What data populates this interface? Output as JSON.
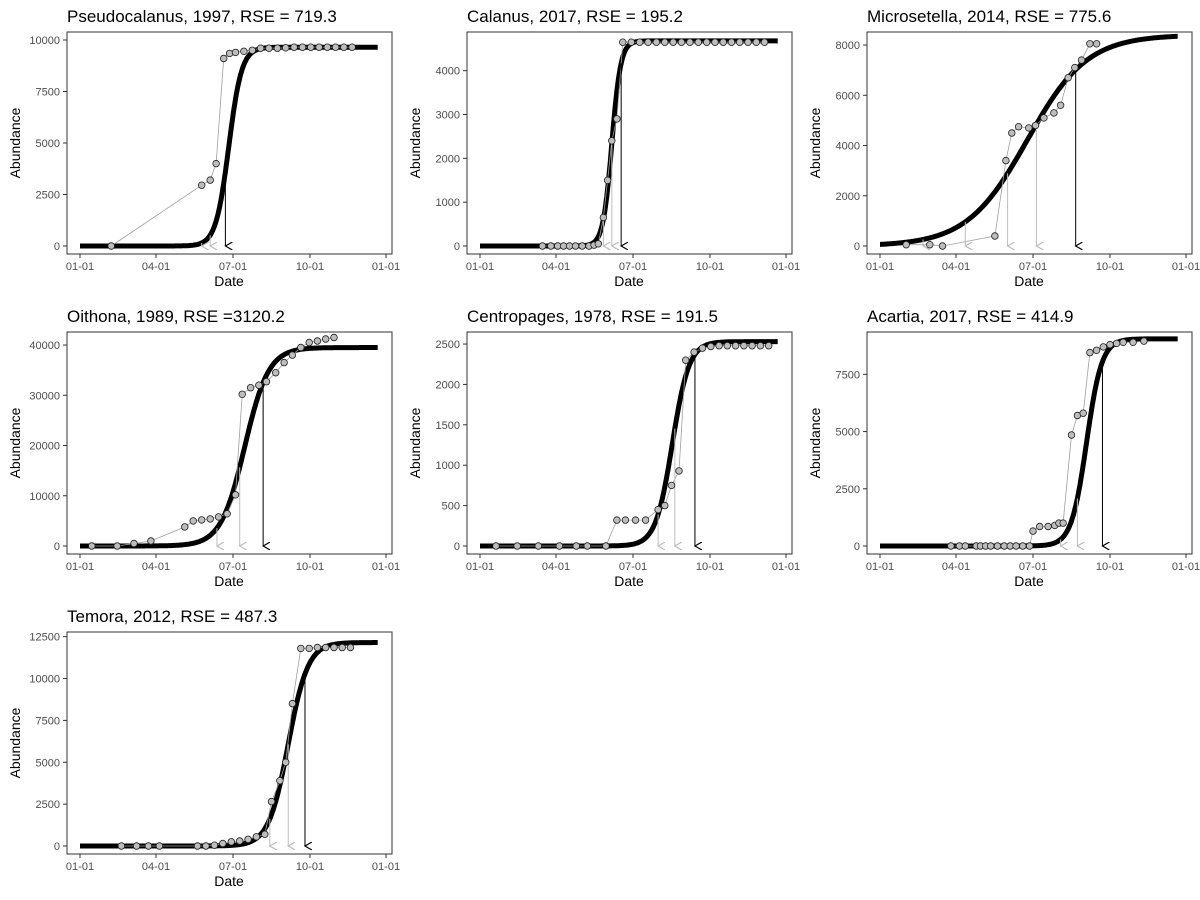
{
  "figure": {
    "x_tick_labels": [
      "01-01",
      "04-01",
      "07-01",
      "10-01",
      "01-01"
    ],
    "xlabel": "Date",
    "ylabel": "Abundance"
  },
  "colors": {
    "fitted_curve": "#000000",
    "observed_points": "#bdbdbd",
    "observed_line": "#a0a0a0",
    "arrow_primary": "#000000",
    "arrow_secondary": "#bdbdbd"
  },
  "chart_data": [
    {
      "type": "scatter",
      "title": "Pseudocalanus, 1997, RSE = 719.3",
      "xlabel": "Date",
      "ylabel": "Abundance",
      "x_unit": "day of year",
      "xlim": [
        1,
        366
      ],
      "ylim": [
        0,
        10000
      ],
      "y_ticks": [
        0,
        2500,
        5000,
        7500,
        10000
      ],
      "y_tick_labels": [
        "0",
        "2500",
        "5000",
        "7500",
        "10000"
      ],
      "fit": {
        "asymptote": 9650,
        "midpoint": 177,
        "rate": 0.13,
        "x_end": 356
      },
      "observed": [
        [
          38,
          0
        ],
        [
          145,
          2950
        ],
        [
          155,
          3200
        ],
        [
          162,
          4000
        ],
        [
          171,
          9100
        ],
        [
          178,
          9350
        ],
        [
          185,
          9400
        ],
        [
          195,
          9450
        ],
        [
          205,
          9500
        ],
        [
          215,
          9600
        ],
        [
          225,
          9600
        ],
        [
          235,
          9600
        ],
        [
          245,
          9620
        ],
        [
          255,
          9650
        ],
        [
          265,
          9650
        ],
        [
          275,
          9650
        ],
        [
          285,
          9650
        ],
        [
          295,
          9650
        ],
        [
          305,
          9650
        ],
        [
          315,
          9650
        ],
        [
          325,
          9650
        ]
      ],
      "arrows": [
        {
          "x": 145,
          "level": "grey"
        },
        {
          "x": 155,
          "level": "grey"
        },
        {
          "x": 173,
          "level": "black"
        }
      ]
    },
    {
      "type": "scatter",
      "title": "Calanus, 2017, RSE = 195.2",
      "xlabel": "Date",
      "ylabel": "Abundance",
      "x_unit": "day of year",
      "xlim": [
        1,
        366
      ],
      "ylim": [
        0,
        4700
      ],
      "y_ticks": [
        0,
        1000,
        2000,
        3000,
        4000
      ],
      "y_tick_labels": [
        "0",
        "1000",
        "2000",
        "3000",
        "4000"
      ],
      "fit": {
        "asymptote": 4680,
        "midpoint": 157,
        "rate": 0.19,
        "x_end": 356
      },
      "observed": [
        [
          75,
          0
        ],
        [
          85,
          0
        ],
        [
          93,
          0
        ],
        [
          100,
          0
        ],
        [
          107,
          0
        ],
        [
          114,
          0
        ],
        [
          122,
          0
        ],
        [
          130,
          0
        ],
        [
          136,
          20
        ],
        [
          141,
          50
        ],
        [
          147,
          650
        ],
        [
          152,
          1500
        ],
        [
          157,
          2400
        ],
        [
          163,
          2900
        ],
        [
          170,
          4650
        ],
        [
          180,
          4650
        ],
        [
          190,
          4650
        ],
        [
          200,
          4650
        ],
        [
          210,
          4650
        ],
        [
          220,
          4650
        ],
        [
          230,
          4650
        ],
        [
          240,
          4650
        ],
        [
          250,
          4650
        ],
        [
          260,
          4650
        ],
        [
          270,
          4650
        ],
        [
          280,
          4650
        ],
        [
          290,
          4650
        ],
        [
          300,
          4650
        ],
        [
          310,
          4650
        ],
        [
          320,
          4650
        ],
        [
          330,
          4650
        ],
        [
          340,
          4650
        ]
      ],
      "arrows": [
        {
          "x": 147,
          "level": "grey"
        },
        {
          "x": 157,
          "level": "grey"
        },
        {
          "x": 168,
          "level": "black"
        }
      ]
    },
    {
      "type": "scatter",
      "title": "Microsetella, 2014, RSE = 775.6",
      "xlabel": "Date",
      "ylabel": "Abundance",
      "x_unit": "day of year",
      "xlim": [
        1,
        366
      ],
      "ylim": [
        0,
        8200
      ],
      "y_ticks": [
        0,
        2000,
        4000,
        6000,
        8000
      ],
      "y_tick_labels": [
        "0",
        "2000",
        "4000",
        "6000",
        "8000"
      ],
      "fit": {
        "asymptote": 8400,
        "midpoint": 175,
        "rate": 0.028,
        "x_end": 356
      },
      "observed": [
        [
          32,
          50
        ],
        [
          60,
          50
        ],
        [
          75,
          0
        ],
        [
          137,
          400
        ],
        [
          150,
          3400
        ],
        [
          157,
          4500
        ],
        [
          165,
          4750
        ],
        [
          177,
          4700
        ],
        [
          185,
          4800
        ],
        [
          195,
          5100
        ],
        [
          207,
          5300
        ],
        [
          215,
          5600
        ],
        [
          224,
          6700
        ],
        [
          232,
          7100
        ],
        [
          240,
          7400
        ],
        [
          250,
          8050
        ],
        [
          258,
          8050
        ]
      ],
      "arrows": [
        {
          "x": 52,
          "level": "grey"
        },
        {
          "x": 102,
          "level": "grey"
        },
        {
          "x": 152,
          "level": "grey"
        },
        {
          "x": 186,
          "level": "grey"
        },
        {
          "x": 233,
          "level": "black"
        }
      ]
    },
    {
      "type": "scatter",
      "title": "Oithona, 1989, RSE =3120.2",
      "xlabel": "Date",
      "ylabel": "Abundance",
      "x_unit": "day of year",
      "xlim": [
        1,
        366
      ],
      "ylim": [
        0,
        41000
      ],
      "y_ticks": [
        0,
        10000,
        20000,
        30000,
        40000
      ],
      "y_tick_labels": [
        "0",
        "10000",
        "20000",
        "30000",
        "40000"
      ],
      "fit": {
        "asymptote": 39500,
        "midpoint": 196,
        "rate": 0.07,
        "x_end": 356
      },
      "observed": [
        [
          15,
          0
        ],
        [
          45,
          0
        ],
        [
          65,
          500
        ],
        [
          85,
          1000
        ],
        [
          125,
          3800
        ],
        [
          135,
          5000
        ],
        [
          145,
          5200
        ],
        [
          155,
          5400
        ],
        [
          165,
          5800
        ],
        [
          175,
          6400
        ],
        [
          185,
          10200
        ],
        [
          193,
          30200
        ],
        [
          203,
          31500
        ],
        [
          213,
          32000
        ],
        [
          222,
          32700
        ],
        [
          233,
          34500
        ],
        [
          243,
          36500
        ],
        [
          253,
          38000
        ],
        [
          263,
          39500
        ],
        [
          273,
          40500
        ],
        [
          283,
          40800
        ],
        [
          293,
          41200
        ],
        [
          303,
          41500
        ]
      ],
      "arrows": [
        {
          "x": 163,
          "level": "grey"
        },
        {
          "x": 190,
          "level": "grey"
        },
        {
          "x": 218,
          "level": "black"
        }
      ]
    },
    {
      "type": "scatter",
      "title": "Centropages, 1978, RSE = 191.5",
      "xlabel": "Date",
      "ylabel": "Abundance",
      "x_unit": "day of year",
      "xlim": [
        1,
        366
      ],
      "ylim": [
        0,
        2550
      ],
      "y_ticks": [
        0,
        500,
        1000,
        1500,
        2000,
        2500
      ],
      "y_tick_labels": [
        "0",
        "500",
        "1000",
        "1500",
        "2000",
        "2500"
      ],
      "fit": {
        "asymptote": 2530,
        "midpoint": 229,
        "rate": 0.1,
        "x_end": 356
      },
      "observed": [
        [
          20,
          0
        ],
        [
          45,
          0
        ],
        [
          70,
          0
        ],
        [
          95,
          0
        ],
        [
          115,
          0
        ],
        [
          128,
          0
        ],
        [
          150,
          0
        ],
        [
          163,
          320
        ],
        [
          173,
          320
        ],
        [
          185,
          320
        ],
        [
          197,
          320
        ],
        [
          212,
          450
        ],
        [
          220,
          500
        ],
        [
          228,
          750
        ],
        [
          237,
          930
        ],
        [
          245,
          2300
        ],
        [
          255,
          2400
        ],
        [
          265,
          2450
        ],
        [
          275,
          2470
        ],
        [
          285,
          2480
        ],
        [
          295,
          2480
        ],
        [
          305,
          2480
        ],
        [
          315,
          2480
        ],
        [
          325,
          2480
        ],
        [
          335,
          2480
        ],
        [
          345,
          2480
        ]
      ],
      "arrows": [
        {
          "x": 212,
          "level": "grey"
        },
        {
          "x": 232,
          "level": "grey"
        },
        {
          "x": 256,
          "level": "black"
        }
      ]
    },
    {
      "type": "scatter",
      "title": "Acartia, 2017, RSE = 414.9",
      "xlabel": "Date",
      "ylabel": "Abundance",
      "x_unit": "day of year",
      "xlim": [
        1,
        366
      ],
      "ylim": [
        0,
        9000
      ],
      "y_ticks": [
        0,
        2500,
        5000,
        7500
      ],
      "y_tick_labels": [
        "0",
        "2500",
        "5000",
        "7500"
      ],
      "fit": {
        "asymptote": 9050,
        "midpoint": 246,
        "rate": 0.11,
        "x_end": 356
      },
      "observed": [
        [
          85,
          0
        ],
        [
          95,
          0
        ],
        [
          102,
          0
        ],
        [
          115,
          0
        ],
        [
          120,
          0
        ],
        [
          126,
          0
        ],
        [
          132,
          0
        ],
        [
          140,
          0
        ],
        [
          148,
          0
        ],
        [
          155,
          0
        ],
        [
          162,
          0
        ],
        [
          170,
          0
        ],
        [
          178,
          0
        ],
        [
          182,
          650
        ],
        [
          190,
          850
        ],
        [
          200,
          850
        ],
        [
          208,
          900
        ],
        [
          213,
          1000
        ],
        [
          218,
          1000
        ],
        [
          228,
          4850
        ],
        [
          235,
          5700
        ],
        [
          242,
          5800
        ],
        [
          250,
          8450
        ],
        [
          258,
          8550
        ],
        [
          266,
          8700
        ],
        [
          274,
          8800
        ],
        [
          282,
          8850
        ],
        [
          290,
          8900
        ],
        [
          302,
          8900
        ],
        [
          315,
          8950
        ]
      ],
      "arrows": [
        {
          "x": 215,
          "level": "grey"
        },
        {
          "x": 235,
          "level": "grey"
        },
        {
          "x": 265,
          "level": "black"
        }
      ]
    },
    {
      "type": "scatter",
      "title": "Temora, 2012, RSE = 487.3",
      "xlabel": "Date",
      "ylabel": "Abundance",
      "x_unit": "day of year",
      "xlim": [
        1,
        366
      ],
      "ylim": [
        0,
        12300
      ],
      "y_ticks": [
        0,
        2500,
        5000,
        7500,
        10000,
        12500
      ],
      "y_tick_labels": [
        "0",
        "2500",
        "5000",
        "7500",
        "10000",
        "12500"
      ],
      "fit": {
        "asymptote": 12150,
        "midpoint": 248,
        "rate": 0.085,
        "x_end": 356
      },
      "observed": [
        [
          50,
          0
        ],
        [
          68,
          0
        ],
        [
          82,
          0
        ],
        [
          95,
          0
        ],
        [
          140,
          0
        ],
        [
          150,
          0
        ],
        [
          160,
          50
        ],
        [
          170,
          150
        ],
        [
          180,
          250
        ],
        [
          190,
          300
        ],
        [
          200,
          400
        ],
        [
          210,
          550
        ],
        [
          220,
          700
        ],
        [
          228,
          2650
        ],
        [
          238,
          3900
        ],
        [
          245,
          5000
        ],
        [
          253,
          8500
        ],
        [
          263,
          11800
        ],
        [
          273,
          11800
        ],
        [
          283,
          11850
        ],
        [
          293,
          11850
        ],
        [
          303,
          11850
        ],
        [
          313,
          11850
        ],
        [
          323,
          11850
        ]
      ],
      "arrows": [
        {
          "x": 226,
          "level": "grey"
        },
        {
          "x": 248,
          "level": "grey"
        },
        {
          "x": 268,
          "level": "black"
        }
      ]
    }
  ]
}
